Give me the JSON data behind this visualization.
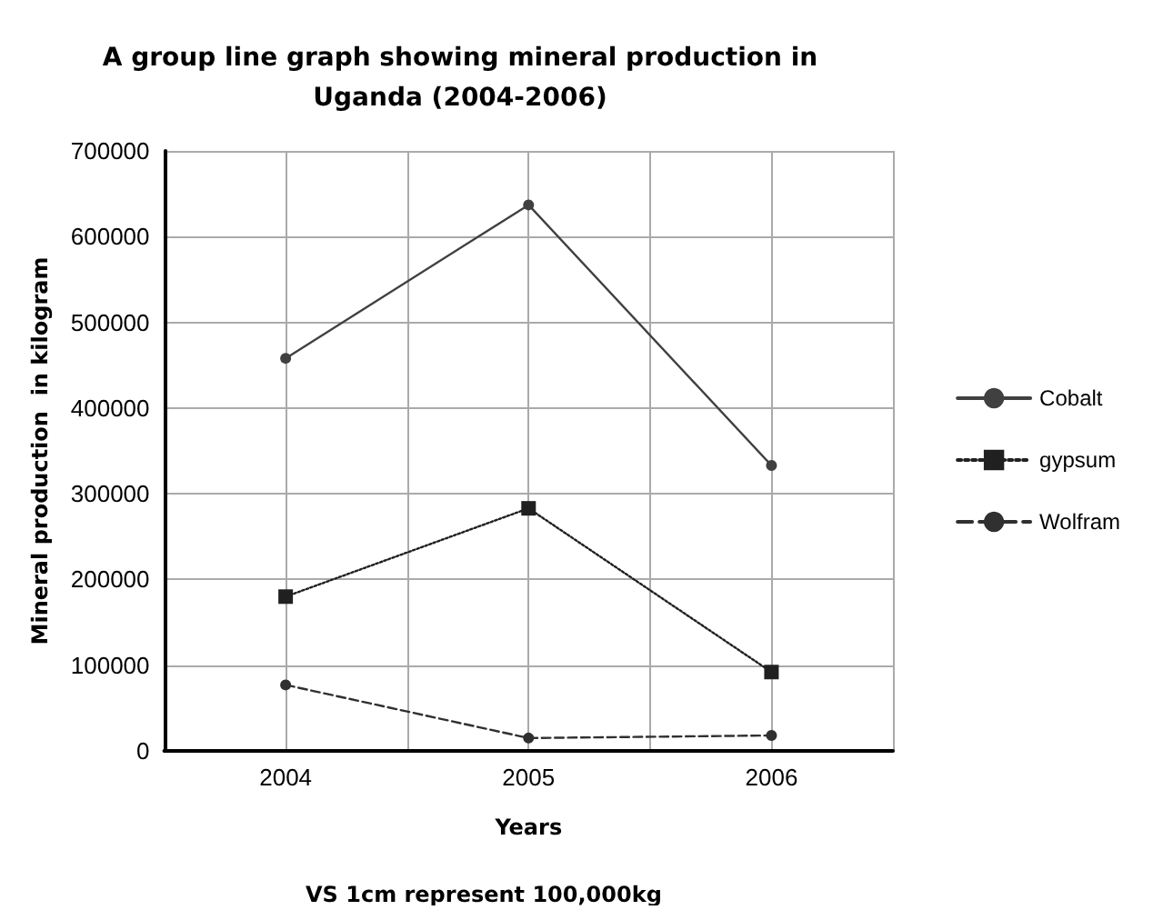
{
  "chart_data": {
    "type": "line",
    "title": "A group line graph showing mineral production in\nUganda (2004-2006)",
    "xlabel": "Years",
    "ylabel": "Mineral production  in kilogram",
    "annotations": [
      "VS 1cm represent 100,000kg"
    ],
    "categories": [
      "2004",
      "2005",
      "2006"
    ],
    "series": [
      {
        "name": "Cobalt",
        "color": "#404040",
        "marker": "circle",
        "line_style": "solid",
        "values": [
          458000,
          637000,
          333000
        ]
      },
      {
        "name": "gypsum",
        "color": "#202020",
        "marker": "square",
        "line_style": "dotted",
        "values": [
          180000,
          283000,
          92000
        ]
      },
      {
        "name": "Wolfram",
        "color": "#303030",
        "marker": "circle",
        "line_style": "dashed",
        "values": [
          77000,
          15000,
          18000
        ]
      }
    ],
    "ylim": [
      0,
      700000
    ],
    "yticks": [
      0,
      100000,
      200000,
      300000,
      400000,
      500000,
      600000,
      700000
    ],
    "grid": true,
    "legend": "right"
  }
}
